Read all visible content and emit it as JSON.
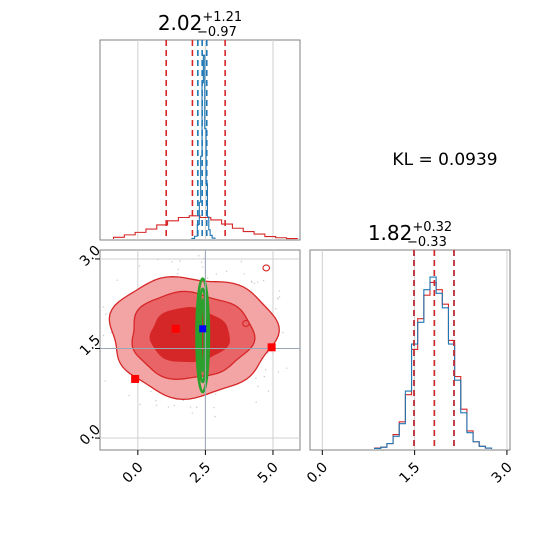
{
  "colors": {
    "red": "#d62728",
    "red_light": "#f3a5a6",
    "red_mid": "#e86466",
    "blue": "#1f77b4",
    "green": "#2ca02c",
    "square_red": "#ff0000",
    "square_blue": "#0000ff",
    "grid": "#d0d0d0"
  },
  "chart_data": [
    {
      "panel": "marginal-x",
      "type": "histogram",
      "title": {
        "value": "2.02",
        "plus": "+1.21",
        "minus": "−0.97"
      },
      "xlim": [
        -1.4,
        6.0
      ],
      "quantile_lines": {
        "red": [
          1.05,
          2.02,
          3.23
        ],
        "blue": [
          2.22,
          2.38,
          2.55
        ]
      },
      "series": [
        {
          "color": "red",
          "x": [
            -0.7,
            -0.3,
            0.1,
            0.5,
            0.9,
            1.3,
            1.7,
            2.1,
            2.5,
            2.9,
            3.3,
            3.7,
            4.1,
            4.5,
            4.9,
            5.3,
            5.7
          ],
          "values": [
            0.2,
            0.5,
            0.8,
            1.2,
            1.7,
            2.2,
            2.6,
            2.8,
            2.6,
            2.3,
            1.8,
            1.3,
            0.9,
            0.6,
            0.3,
            0.15,
            0.05
          ]
        },
        {
          "color": "blue",
          "x": [
            2.05,
            2.15,
            2.25,
            2.3,
            2.35,
            2.4,
            2.45,
            2.5,
            2.55,
            2.6,
            2.65,
            2.7,
            2.8
          ],
          "values": [
            0.3,
            1.5,
            8,
            20,
            45,
            85,
            100,
            60,
            30,
            12,
            5,
            2,
            0.5
          ]
        }
      ]
    },
    {
      "panel": "joint",
      "type": "contour",
      "xlim": [
        -1.4,
        6.0
      ],
      "ylim": [
        -0.2,
        3.15
      ],
      "xticks": [
        "0.0",
        "2.5",
        "5.0"
      ],
      "yticks": [
        "0.0",
        "1.5",
        "3.0"
      ],
      "red_squares": [
        [
          1.4,
          1.83
        ],
        [
          -0.1,
          0.99
        ],
        [
          4.95,
          1.52
        ]
      ],
      "blue_square": [
        2.4,
        1.83
      ],
      "center_lines": {
        "x": 2.5,
        "y": 1.5
      }
    },
    {
      "panel": "marginal-y",
      "type": "histogram",
      "title": {
        "value": "1.82",
        "plus": "+0.32",
        "minus": "−0.33"
      },
      "xlim": [
        -0.2,
        3.05
      ],
      "xticks": [
        "0.0",
        "1.5",
        "3.0"
      ],
      "quantile_lines": {
        "red": [
          1.49,
          1.82,
          2.14
        ],
        "blue": [
          1.49,
          1.82,
          2.14
        ]
      },
      "series": [
        {
          "color": "red",
          "x": [
            0.9,
            1.0,
            1.1,
            1.2,
            1.3,
            1.4,
            1.5,
            1.6,
            1.7,
            1.8,
            1.9,
            2.0,
            2.1,
            2.2,
            2.3,
            2.4,
            2.5,
            2.6,
            2.7
          ],
          "values": [
            0.5,
            1,
            3,
            8,
            15,
            30,
            55,
            72,
            85,
            92,
            88,
            80,
            60,
            40,
            22,
            10,
            4,
            1.5,
            0.5
          ]
        },
        {
          "color": "blue",
          "x": [
            0.9,
            1.0,
            1.1,
            1.2,
            1.3,
            1.4,
            1.5,
            1.6,
            1.7,
            1.8,
            1.9,
            2.0,
            2.1,
            2.2,
            2.3,
            2.4,
            2.5,
            2.6,
            2.7
          ],
          "values": [
            0.3,
            1,
            3,
            7,
            14,
            32,
            58,
            70,
            88,
            95,
            86,
            78,
            58,
            38,
            20,
            9,
            4,
            1.5,
            0.5
          ]
        }
      ]
    }
  ],
  "annotation": {
    "kl": "KL = 0.0939"
  }
}
